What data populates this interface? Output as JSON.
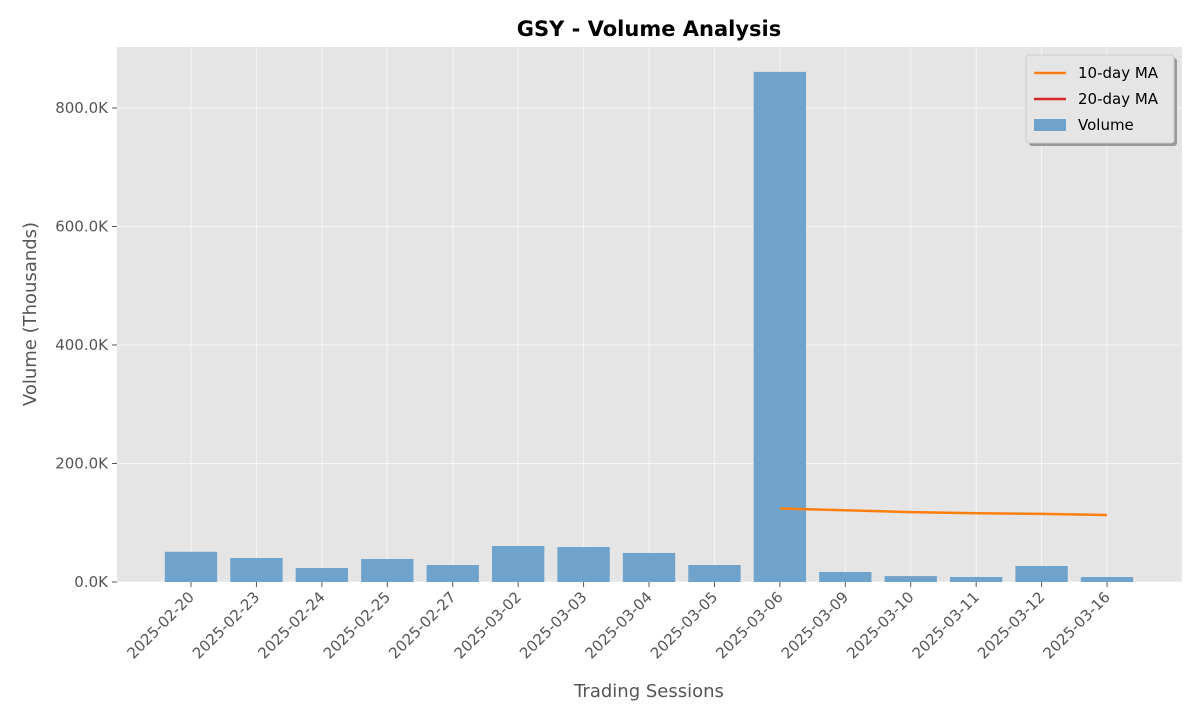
{
  "chart_data": {
    "type": "bar",
    "title": "GSY - Volume Analysis",
    "xlabel": "Trading Sessions",
    "ylabel": "Volume (Thousands)",
    "categories": [
      "2025-02-20",
      "2025-02-23",
      "2025-02-24",
      "2025-02-25",
      "2025-02-27",
      "2025-03-02",
      "2025-03-03",
      "2025-03-04",
      "2025-03-05",
      "2025-03-06",
      "2025-03-09",
      "2025-03-10",
      "2025-03-11",
      "2025-03-12",
      "2025-03-16"
    ],
    "series": [
      {
        "name": "10-day MA",
        "type": "line",
        "color": "#ff7f0e",
        "values": [
          null,
          null,
          null,
          null,
          null,
          null,
          null,
          null,
          null,
          124000,
          121000,
          118000,
          116000,
          115000,
          113000
        ]
      },
      {
        "name": "20-day MA",
        "type": "line",
        "color": "#d62728",
        "values": [
          null,
          null,
          null,
          null,
          null,
          null,
          null,
          null,
          null,
          null,
          null,
          null,
          null,
          null,
          null
        ]
      },
      {
        "name": "Volume",
        "type": "bar",
        "color": "#6fa3cb",
        "values": [
          51000,
          40500,
          23600,
          38800,
          28700,
          60800,
          59000,
          49000,
          28700,
          861000,
          16900,
          10000,
          8400,
          27000,
          8400
        ]
      }
    ],
    "ylim": [
      0,
      903000
    ],
    "yticks": [
      {
        "value": 0,
        "label": "0.0K"
      },
      {
        "value": 200000,
        "label": "200.0K"
      },
      {
        "value": 400000,
        "label": "400.0K"
      },
      {
        "value": 600000,
        "label": "600.0K"
      },
      {
        "value": 800000,
        "label": "800.0K"
      }
    ],
    "grid": true,
    "legend": "upper right"
  }
}
